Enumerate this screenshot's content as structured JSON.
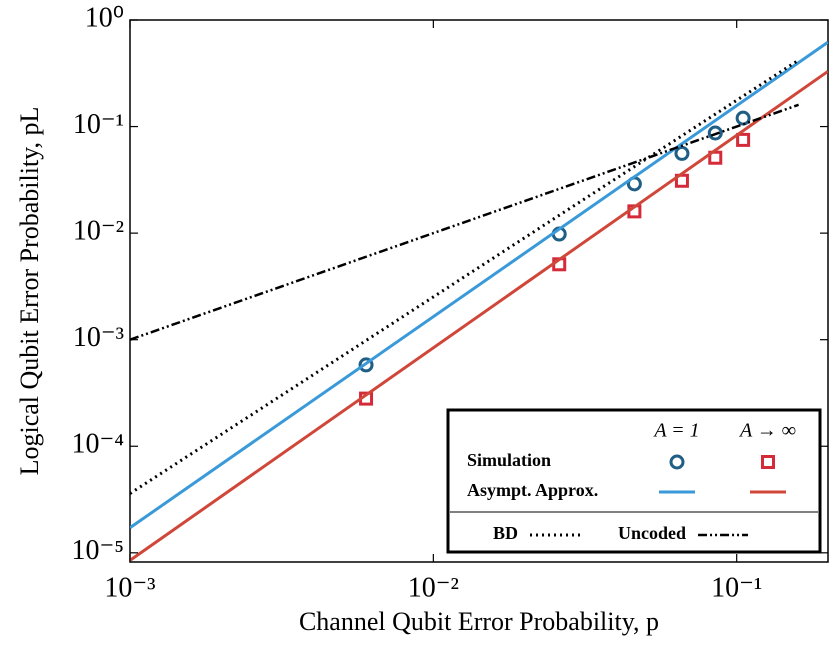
{
  "chart_data": {
    "type": "line",
    "x_label": "Channel Qubit Error Probability, p",
    "y_label": "Logical Qubit Error Probability, pL",
    "xscale": "log",
    "yscale": "log",
    "xlim": [
      0.001,
      0.2
    ],
    "ylim": [
      8.2e-06,
      1
    ],
    "xticks": [
      {
        "value": 0.001,
        "label": "10⁻³"
      },
      {
        "value": 0.01,
        "label": "10⁻²"
      },
      {
        "value": 0.1,
        "label": "10⁻¹"
      }
    ],
    "yticks": [
      {
        "value": 1e-05,
        "label": "10⁻⁵"
      },
      {
        "value": 0.0001,
        "label": "10⁻⁴"
      },
      {
        "value": 0.001,
        "label": "10⁻³"
      },
      {
        "value": 0.01,
        "label": "10⁻²"
      },
      {
        "value": 0.1,
        "label": "10⁻¹"
      },
      {
        "value": 1,
        "label": "10⁰"
      }
    ],
    "legend": "lower right",
    "series": [
      {
        "name": "Simulation",
        "variant": "A = 1",
        "style": "circle",
        "color": "#1f5f85",
        "x": [
          0.006,
          0.026,
          0.046,
          0.066,
          0.085,
          0.105
        ],
        "values": [
          0.00058,
          0.0098,
          0.029,
          0.056,
          0.087,
          0.12
        ]
      },
      {
        "name": "Simulation",
        "variant": "A → ∞",
        "style": "square",
        "color": "#d42a3a",
        "x": [
          0.006,
          0.026,
          0.046,
          0.066,
          0.085,
          0.105
        ],
        "values": [
          0.00028,
          0.0051,
          0.016,
          0.031,
          0.051,
          0.075
        ]
      },
      {
        "name": "Asympt. Approx.",
        "variant": "A = 1",
        "style": "solid",
        "color": "#3a9ad9",
        "x": [
          0.001,
          0.2
        ],
        "values": [
          1.72e-05,
          0.62
        ]
      },
      {
        "name": "Asympt. Approx.",
        "variant": "A → ∞",
        "style": "solid",
        "color": "#d0473a",
        "x": [
          0.001,
          0.2
        ],
        "values": [
          8.5e-06,
          0.33
        ]
      },
      {
        "name": "BD",
        "style": "dotted",
        "color": "#000000",
        "x": [
          0.001,
          0.16
        ],
        "values": [
          3.6e-05,
          0.42
        ]
      },
      {
        "name": "Uncoded",
        "style": "dashdot",
        "color": "#000000",
        "x": [
          0.001,
          0.16
        ],
        "values": [
          0.001,
          0.16
        ]
      }
    ]
  }
}
